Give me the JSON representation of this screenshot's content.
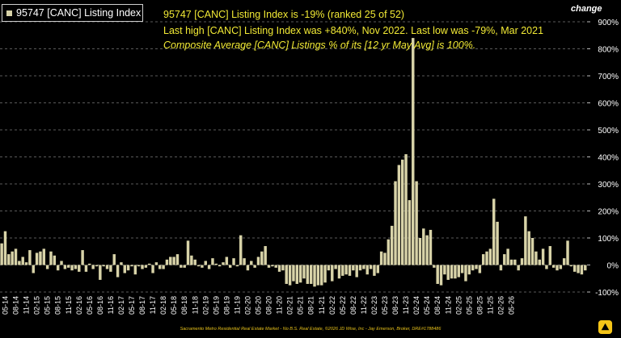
{
  "legend": {
    "label": "95747 [CANC] Listing Index"
  },
  "annotations": {
    "line1": "95747 [CANC] Listing Index is -19% (ranked 25 of 52)",
    "line2": "Last high [CANC] Listing Index was +840%, Nov 2022. Last low was -79%, Mar 2021",
    "line3": "Composite Average [CANC] Listings % of its [12 yr May Avg] is 100%."
  },
  "change_label": "change",
  "footer": "Sacramento Metro Residential Real Estate Market - No B.S. Real Estate, ©2026 JD Wise, Inc - Jay Emerson, Broker, DRE#1788486",
  "colors": {
    "bar": "#d8d3a8",
    "annotation": "#f2ea35",
    "grid": "#5a5a5a",
    "axis_text": "#ffffff",
    "footer": "#e8c21a",
    "logo": "#f5c518"
  },
  "chart_data": {
    "type": "bar",
    "series_name": "95747 [CANC] Listing Index",
    "ylim": [
      -100,
      900
    ],
    "yticks": [
      -100,
      0,
      100,
      200,
      300,
      400,
      500,
      600,
      700,
      800,
      900
    ],
    "ytick_format": "percent",
    "grid": "horizontal-dashed",
    "legend_position": "top-left",
    "x_tick_labels": [
      "05-14",
      "08-14",
      "11-14",
      "02-15",
      "05-15",
      "08-15",
      "11-15",
      "02-16",
      "05-16",
      "08-16",
      "11-16",
      "02-17",
      "05-17",
      "08-17",
      "11-17",
      "02-18",
      "05-18",
      "08-18",
      "11-18",
      "02-19",
      "05-19",
      "08-19",
      "11-19",
      "02-20",
      "05-20",
      "08-20",
      "11-20",
      "02-21",
      "05-21",
      "08-21",
      "11-21",
      "02-22",
      "05-22",
      "08-22",
      "11-22",
      "02-23",
      "05-23",
      "08-23",
      "11-23",
      "02-24",
      "05-24",
      "08-24",
      "11-24",
      "02-25",
      "05-25",
      "08-25",
      "11-25",
      "02-26",
      "05-26"
    ],
    "start_month": "04-14",
    "values": [
      80,
      125,
      40,
      50,
      60,
      15,
      30,
      10,
      55,
      -30,
      45,
      50,
      60,
      -15,
      50,
      35,
      -20,
      15,
      -15,
      -10,
      -20,
      -15,
      -25,
      55,
      -25,
      5,
      -15,
      -5,
      -55,
      -5,
      -15,
      -25,
      40,
      -45,
      10,
      -30,
      -20,
      -5,
      -35,
      -5,
      -15,
      -10,
      5,
      -30,
      10,
      -15,
      -15,
      20,
      30,
      30,
      40,
      -10,
      -10,
      90,
      35,
      20,
      -5,
      -10,
      15,
      -15,
      25,
      5,
      -5,
      10,
      30,
      -10,
      25,
      -5,
      110,
      25,
      -20,
      15,
      -10,
      30,
      50,
      70,
      -10,
      -5,
      -10,
      -25,
      -20,
      -70,
      -75,
      -60,
      -70,
      -65,
      -50,
      -70,
      -70,
      -80,
      -75,
      -75,
      -65,
      -20,
      -60,
      -15,
      -50,
      -40,
      -35,
      -40,
      -20,
      -45,
      -20,
      -15,
      -35,
      -15,
      -40,
      -30,
      50,
      45,
      95,
      145,
      310,
      370,
      390,
      410,
      240,
      840,
      310,
      100,
      135,
      110,
      130,
      -10,
      -70,
      -75,
      -35,
      -55,
      -50,
      -50,
      -45,
      -30,
      -60,
      -35,
      -20,
      -15,
      -30,
      40,
      50,
      60,
      245,
      160,
      -20,
      40,
      60,
      20,
      20,
      -20,
      25,
      180,
      125,
      100,
      50,
      20,
      60,
      -15,
      70,
      -10,
      -20,
      -15,
      25,
      90,
      -5,
      -25,
      -30,
      -35,
      -20
    ]
  }
}
